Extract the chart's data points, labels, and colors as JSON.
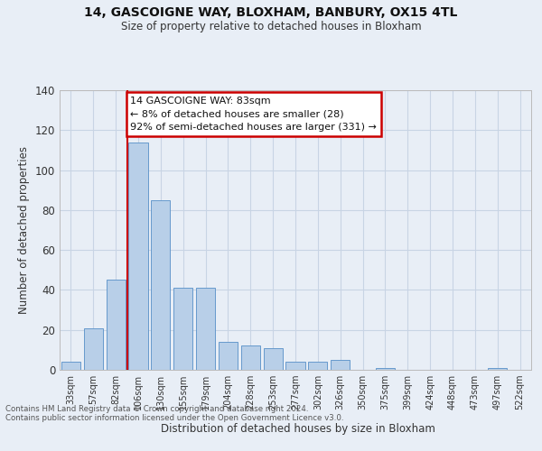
{
  "title_line1": "14, GASCOIGNE WAY, BLOXHAM, BANBURY, OX15 4TL",
  "title_line2": "Size of property relative to detached houses in Bloxham",
  "xlabel": "Distribution of detached houses by size in Bloxham",
  "ylabel": "Number of detached properties",
  "bin_labels": [
    "33sqm",
    "57sqm",
    "82sqm",
    "106sqm",
    "130sqm",
    "155sqm",
    "179sqm",
    "204sqm",
    "228sqm",
    "253sqm",
    "277sqm",
    "302sqm",
    "326sqm",
    "350sqm",
    "375sqm",
    "399sqm",
    "424sqm",
    "448sqm",
    "473sqm",
    "497sqm",
    "522sqm"
  ],
  "bar_heights": [
    4,
    21,
    45,
    114,
    85,
    41,
    41,
    14,
    12,
    11,
    4,
    4,
    5,
    0,
    1,
    0,
    0,
    0,
    0,
    1,
    0
  ],
  "bar_color": "#b8cfe8",
  "bar_edgecolor": "#6699cc",
  "grid_color": "#c8d4e4",
  "background_color": "#e8eef6",
  "vline_x": 2.5,
  "vline_color": "#cc0000",
  "annotation_text": "14 GASCOIGNE WAY: 83sqm\n← 8% of detached houses are smaller (28)\n92% of semi-detached houses are larger (331) →",
  "annotation_box_facecolor": "#ffffff",
  "annotation_box_edgecolor": "#cc0000",
  "footnote_line1": "Contains HM Land Registry data © Crown copyright and database right 2024.",
  "footnote_line2": "Contains public sector information licensed under the Open Government Licence v3.0.",
  "ylim": [
    0,
    140
  ],
  "yticks": [
    0,
    20,
    40,
    60,
    80,
    100,
    120,
    140
  ]
}
